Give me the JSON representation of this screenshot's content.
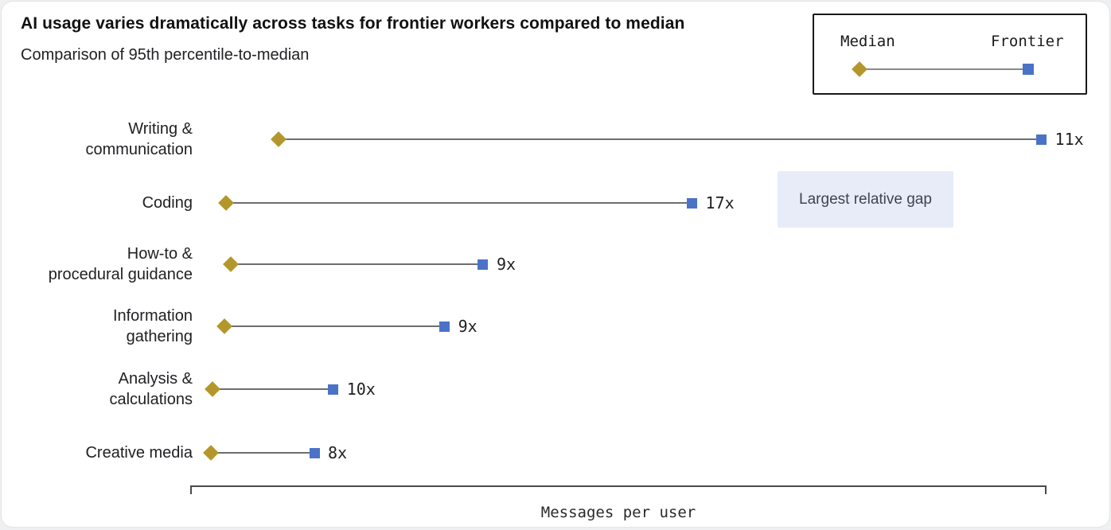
{
  "header": {
    "title": "AI usage varies dramatically across tasks for frontier workers compared to median",
    "subtitle": "Comparison of 95th percentile-to-median"
  },
  "legend": {
    "median_label": "Median",
    "frontier_label": "Frontier"
  },
  "annotation": {
    "text": "Largest relative gap",
    "attached_category": "Coding"
  },
  "colors": {
    "median_marker": "#b4972a",
    "frontier_marker": "#4a73c8",
    "connector_line": "#6e6e6e",
    "annotation_bg": "#e7ecf8",
    "axis": "#4a4a4a"
  },
  "chart_data": {
    "type": "dumbbell",
    "orientation": "horizontal",
    "title": "AI usage varies dramatically across tasks for frontier workers compared to median",
    "subtitle": "Comparison of 95th percentile-to-median",
    "xlabel": "Messages per user",
    "x_tick_labels": [],
    "grid": false,
    "legend_position": "top-right",
    "categories": [
      "Writing & communication",
      "Coding",
      "How-to & procedural guidance",
      "Information gathering",
      "Analysis & calculations",
      "Creative media"
    ],
    "label_lines": [
      [
        "Writing &",
        "communication"
      ],
      [
        "Coding"
      ],
      [
        "How-to &",
        "procedural guidance"
      ],
      [
        "Information",
        "gathering"
      ],
      [
        "Analysis &",
        "calculations"
      ],
      [
        "Creative media"
      ]
    ],
    "series": [
      {
        "name": "Median",
        "marker": "diamond",
        "color": "#b4972a",
        "axis_fraction": [
          0.103,
          0.042,
          0.047,
          0.04,
          0.026,
          0.024
        ]
      },
      {
        "name": "Frontier",
        "marker": "square",
        "color": "#4a73c8",
        "axis_fraction": [
          0.994,
          0.586,
          0.342,
          0.297,
          0.167,
          0.145
        ]
      }
    ],
    "value_labels": [
      "11x",
      "17x",
      "9x",
      "9x",
      "10x",
      "8x"
    ],
    "annotations": [
      {
        "text": "Largest relative gap",
        "row": "Coding"
      }
    ]
  }
}
